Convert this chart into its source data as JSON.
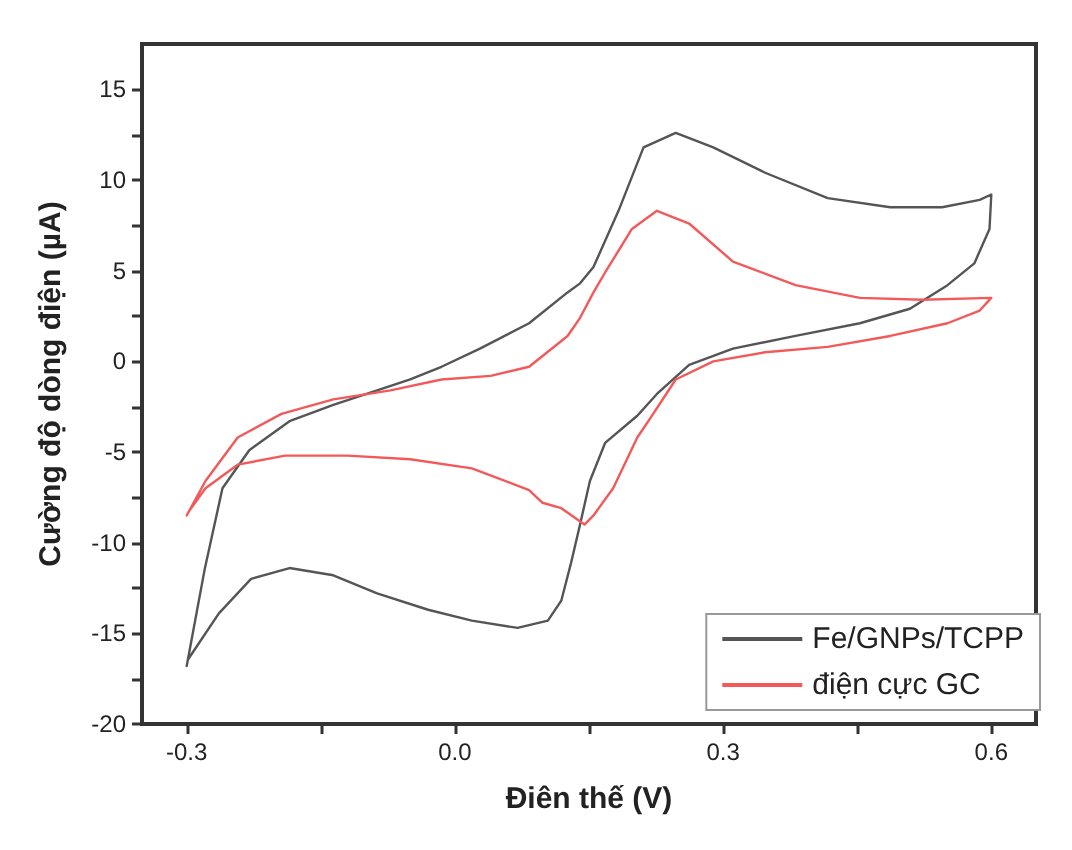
{
  "chart_data": {
    "type": "line",
    "xlabel": "Điên thế (V)",
    "ylabel": "Cường độ dòng điện (µA)",
    "xlim": [
      -0.35,
      0.65
    ],
    "ylim": [
      -20,
      17.5
    ],
    "xticks": [
      -0.3,
      {
        "value": -0.15,
        "label": null
      },
      {
        "value": 0,
        "label": "0.0"
      },
      {
        "value": 0.15,
        "label": null
      },
      0.3,
      {
        "value": 0.45,
        "label": null
      },
      0.6
    ],
    "yticks": [
      -20,
      {
        "value": -17.5,
        "label": null
      },
      -15,
      {
        "value": -12.5,
        "label": null
      },
      -10,
      {
        "value": -7.5,
        "label": null
      },
      -5,
      {
        "value": -2.5,
        "label": null
      },
      0,
      {
        "value": 2.5,
        "label": null
      },
      5,
      {
        "value": 7.5,
        "label": null
      },
      10,
      {
        "value": 12.5,
        "label": null
      },
      15
    ],
    "grid": false,
    "legend": "bottom right",
    "marker": "none",
    "line_style": "solid",
    "series": [
      {
        "name": "Fe/GNPs/TCPP",
        "color": "#555555",
        "x": [
          -0.3,
          -0.28,
          -0.26,
          -0.23,
          -0.185,
          -0.136,
          -0.087,
          -0.05,
          -0.015,
          0.028,
          0.083,
          0.126,
          0.14,
          0.155,
          0.183,
          0.211,
          0.247,
          0.289,
          0.347,
          0.417,
          0.487,
          0.545,
          0.587,
          0.6,
          0.598,
          0.581,
          0.551,
          0.509,
          0.453,
          0.381,
          0.311,
          0.262,
          0.226,
          0.204,
          0.168,
          0.151,
          0.14,
          0.13,
          0.119,
          0.104,
          0.07,
          0.019,
          -0.03,
          -0.087,
          -0.136,
          -0.185,
          -0.228,
          -0.264,
          -0.298
        ],
        "values": [
          -16.8,
          -11.5,
          -7,
          -4.9,
          -3.3,
          -2.4,
          -1.6,
          -1,
          -0.3,
          0.7,
          2.1,
          3.8,
          4.3,
          5.2,
          8.3,
          11.8,
          12.6,
          11.8,
          10.4,
          9,
          8.5,
          8.5,
          8.9,
          9.2,
          7.3,
          5.4,
          4.2,
          2.9,
          2.1,
          1.4,
          0.7,
          -0.2,
          -1.8,
          -3,
          -4.5,
          -6.6,
          -9,
          -11.1,
          -13.2,
          -14.3,
          -14.7,
          -14.3,
          -13.7,
          -12.8,
          -11.8,
          -11.4,
          -12,
          -13.9,
          -16.4
        ]
      },
      {
        "name": "điện cực GC",
        "color": "#f25a5a",
        "x": [
          -0.3,
          -0.279,
          -0.243,
          -0.194,
          -0.136,
          -0.072,
          -0.015,
          0.04,
          0.083,
          0.126,
          0.14,
          0.155,
          0.168,
          0.198,
          0.226,
          0.262,
          0.311,
          0.381,
          0.453,
          0.523,
          0.6,
          0.587,
          0.551,
          0.487,
          0.417,
          0.347,
          0.289,
          0.247,
          0.219,
          0.204,
          0.177,
          0.155,
          0.145,
          0.119,
          0.098,
          0.083,
          0.019,
          -0.05,
          -0.12,
          -0.19,
          -0.243,
          -0.279,
          -0.298
        ],
        "values": [
          -8.5,
          -6.6,
          -4.2,
          -2.9,
          -2.1,
          -1.6,
          -1,
          -0.8,
          -0.3,
          1.4,
          2.4,
          3.8,
          4.9,
          7.3,
          8.3,
          7.6,
          5.5,
          4.2,
          3.5,
          3.4,
          3.5,
          2.8,
          2.1,
          1.4,
          0.8,
          0.5,
          0,
          -1,
          -3.1,
          -4.2,
          -7,
          -8.5,
          -9,
          -8.1,
          -7.8,
          -7.1,
          -5.9,
          -5.4,
          -5.2,
          -5.2,
          -5.7,
          -7,
          -8.3
        ]
      }
    ]
  }
}
